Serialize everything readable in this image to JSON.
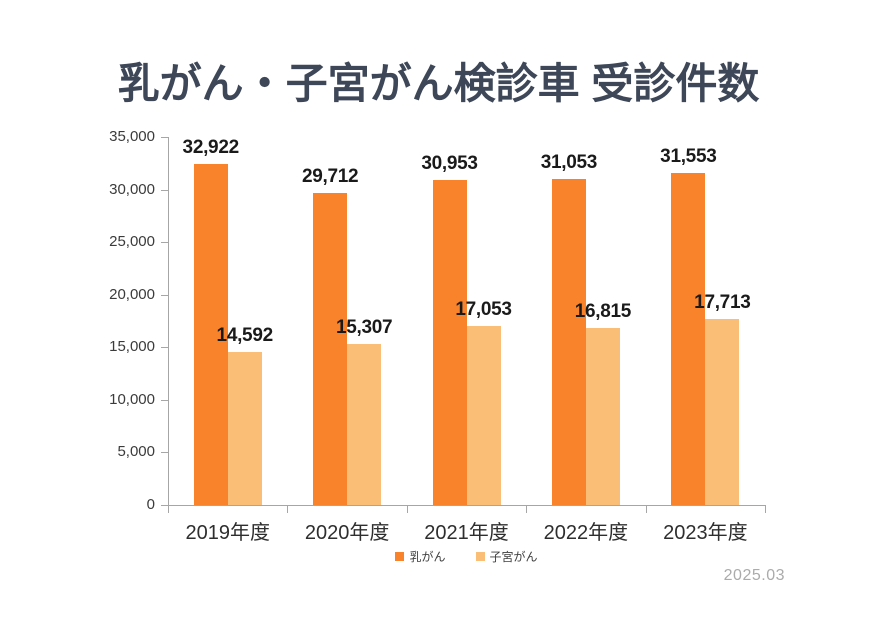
{
  "title": "乳がん・子宮がん検診車 受診件数",
  "footer": {
    "date_note": "2025.03"
  },
  "colors": {
    "title": "#3D4757",
    "series1": "#F8832B",
    "series2": "#FBBE76",
    "axis_line": "#A6A6A6",
    "y_label": "#3B3B3B",
    "x_label": "#2E2E2E",
    "value_label": "#1A1A1A",
    "legend_text": "#3F3F3F",
    "date_note": "#ABABAB",
    "background": "#FFFFFF"
  },
  "chart_data": {
    "type": "bar",
    "title": "乳がん・子宮がん検診車 受診件数",
    "categories": [
      "2019年度",
      "2020年度",
      "2021年度",
      "2022年度",
      "2023年度"
    ],
    "series": [
      {
        "key": "breast-cancer",
        "name": "乳がん",
        "color": "#F8832B",
        "values": [
          32922,
          29712,
          30953,
          31053,
          31553
        ]
      },
      {
        "key": "uterine-cancer",
        "name": "子宮がん",
        "color": "#FBBE76",
        "values": [
          14592,
          15307,
          17053,
          16815,
          17713
        ]
      }
    ],
    "xlabel": "",
    "ylabel": "",
    "ylim": [
      0,
      35000
    ],
    "ytick_step": 5000,
    "yticks": [
      "35,000",
      "30,000",
      "25,000",
      "20,000",
      "15,000",
      "10,000",
      "5,000",
      "0"
    ],
    "grid": false,
    "legend_position": "bottom",
    "value_labels_shown": true
  }
}
